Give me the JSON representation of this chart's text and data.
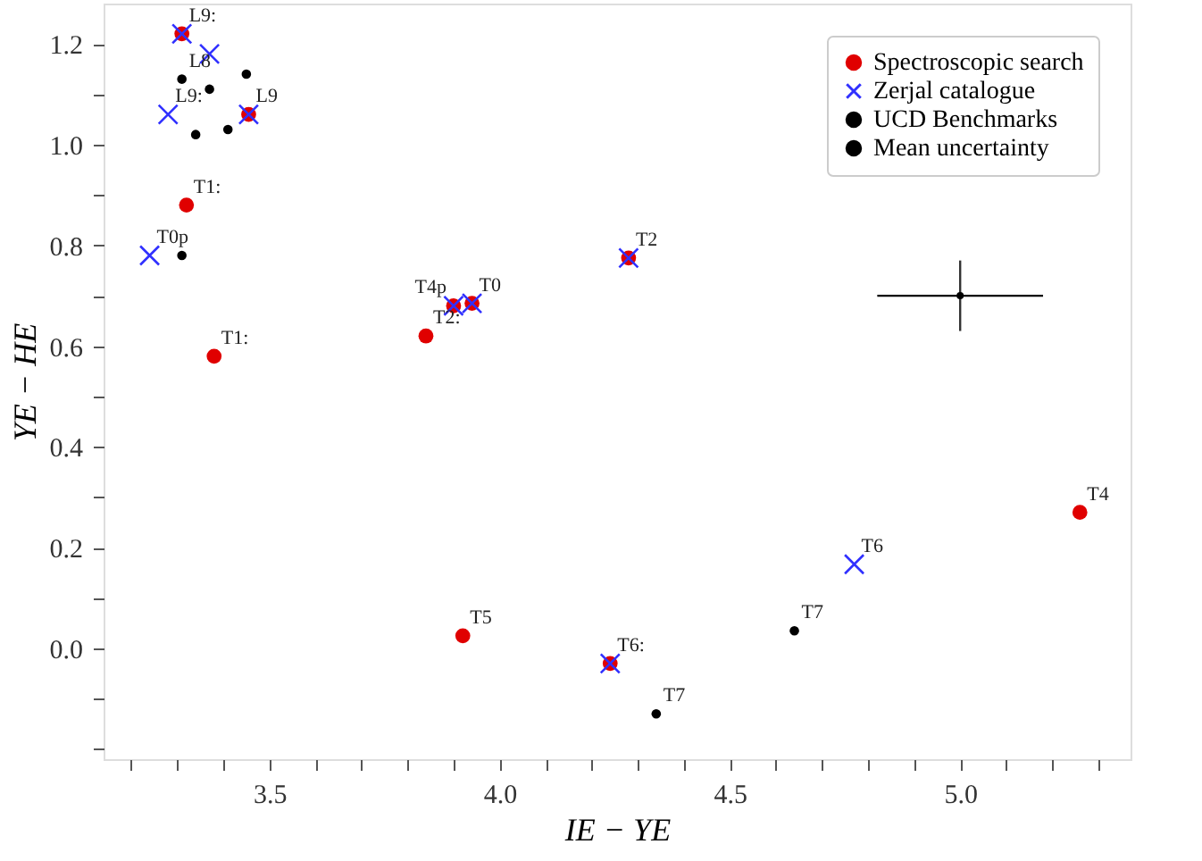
{
  "chart_data": {
    "type": "scatter",
    "xlabel": "IE − YE",
    "ylabel": "YE − HE",
    "xlim": [
      3.14,
      5.37
    ],
    "ylim": [
      -0.22,
      1.28
    ],
    "xticks": [
      {
        "value": 3.2,
        "label": null
      },
      {
        "value": 3.3,
        "label": null
      },
      {
        "value": 3.4,
        "label": null
      },
      3.5,
      {
        "value": 3.6,
        "label": null
      },
      {
        "value": 3.7,
        "label": null
      },
      {
        "value": 3.8,
        "label": null
      },
      {
        "value": 3.9,
        "label": null
      },
      {
        "value": 4,
        "label": "4.0"
      },
      {
        "value": 4.1,
        "label": null
      },
      {
        "value": 4.2,
        "label": null
      },
      {
        "value": 4.3,
        "label": null
      },
      {
        "value": 4.4,
        "label": null
      },
      4.5,
      {
        "value": 4.6,
        "label": null
      },
      {
        "value": 4.7,
        "label": null
      },
      {
        "value": 4.8,
        "label": null
      },
      {
        "value": 4.9,
        "label": null
      },
      {
        "value": 5,
        "label": "5.0"
      },
      {
        "value": 5.1,
        "label": null
      },
      {
        "value": 5.2,
        "label": null
      },
      {
        "value": 5.3,
        "label": null
      }
    ],
    "yticks": [
      {
        "value": -0.2,
        "label": null
      },
      {
        "value": -0.1,
        "label": null
      },
      {
        "value": 0,
        "label": "0.0"
      },
      {
        "value": 0.1,
        "label": null
      },
      0.2,
      {
        "value": 0.3,
        "label": null
      },
      0.4,
      {
        "value": 0.5,
        "label": null
      },
      0.6,
      {
        "value": 0.7,
        "label": null
      },
      0.8,
      {
        "value": 0.9,
        "label": null
      },
      {
        "value": 1,
        "label": "1.0"
      },
      {
        "value": 1.1,
        "label": null
      },
      1.2
    ],
    "grid": false,
    "legend": "top right",
    "series": [
      {
        "name": "Spectroscopic search",
        "color": "#e00000",
        "marker": "circle",
        "x": [
          3.31,
          3.455,
          3.32,
          3.38,
          3.9,
          3.94,
          3.84,
          4.28,
          3.92,
          4.24,
          5.26
        ],
        "values": [
          1.22,
          1.06,
          0.88,
          0.58,
          0.68,
          0.685,
          0.62,
          0.775,
          0.025,
          -0.03,
          0.27
        ]
      },
      {
        "name": "Zerjal catalogue",
        "color": "#3030ff",
        "marker": "cross",
        "x": [
          3.31,
          3.37,
          3.28,
          3.455,
          3.24,
          3.9,
          3.94,
          4.28,
          4.24,
          4.77
        ],
        "values": [
          1.22,
          1.18,
          1.06,
          1.06,
          0.78,
          0.68,
          0.685,
          0.775,
          -0.03,
          0.167
        ]
      },
      {
        "name": "UCD Benchmarks",
        "color": "#000000",
        "marker": "circle",
        "x": [
          3.31,
          3.45,
          3.37,
          3.34,
          3.41,
          3.31,
          4.34,
          4.64
        ],
        "values": [
          1.13,
          1.14,
          1.11,
          1.02,
          1.03,
          0.78,
          -0.13,
          0.035
        ]
      },
      {
        "name": "Mean uncertainty",
        "color": "#000000",
        "marker": "circle",
        "x": [
          5.0
        ],
        "values": [
          0.7
        ],
        "errors": [
          0.07
        ],
        "xerrors": [
          0.18
        ]
      }
    ],
    "annotations": [
      {
        "text": "L9:",
        "x": 3.31,
        "y": 1.22
      },
      {
        "text": "L8",
        "x": 3.31,
        "y": 1.13
      },
      {
        "text": "L9",
        "x": 3.455,
        "y": 1.06
      },
      {
        "text": "L9:",
        "x": 3.28,
        "y": 1.06
      },
      {
        "text": "T1:",
        "x": 3.32,
        "y": 0.88
      },
      {
        "text": "T0p",
        "x": 3.24,
        "y": 0.78
      },
      {
        "text": "T1:",
        "x": 3.38,
        "y": 0.58
      },
      {
        "text": "T4p",
        "x": 3.9,
        "y": 0.68
      },
      {
        "text": "T0",
        "x": 3.94,
        "y": 0.685
      },
      {
        "text": "T2:",
        "x": 3.84,
        "y": 0.62
      },
      {
        "text": "T2",
        "x": 4.28,
        "y": 0.775
      },
      {
        "text": "T4",
        "x": 5.26,
        "y": 0.27
      },
      {
        "text": "T6",
        "x": 4.77,
        "y": 0.167
      },
      {
        "text": "T7",
        "x": 4.64,
        "y": 0.035
      },
      {
        "text": "T5",
        "x": 3.92,
        "y": 0.025
      },
      {
        "text": "T6:",
        "x": 4.24,
        "y": -0.03
      },
      {
        "text": "T7",
        "x": 4.34,
        "y": -0.13
      }
    ]
  }
}
